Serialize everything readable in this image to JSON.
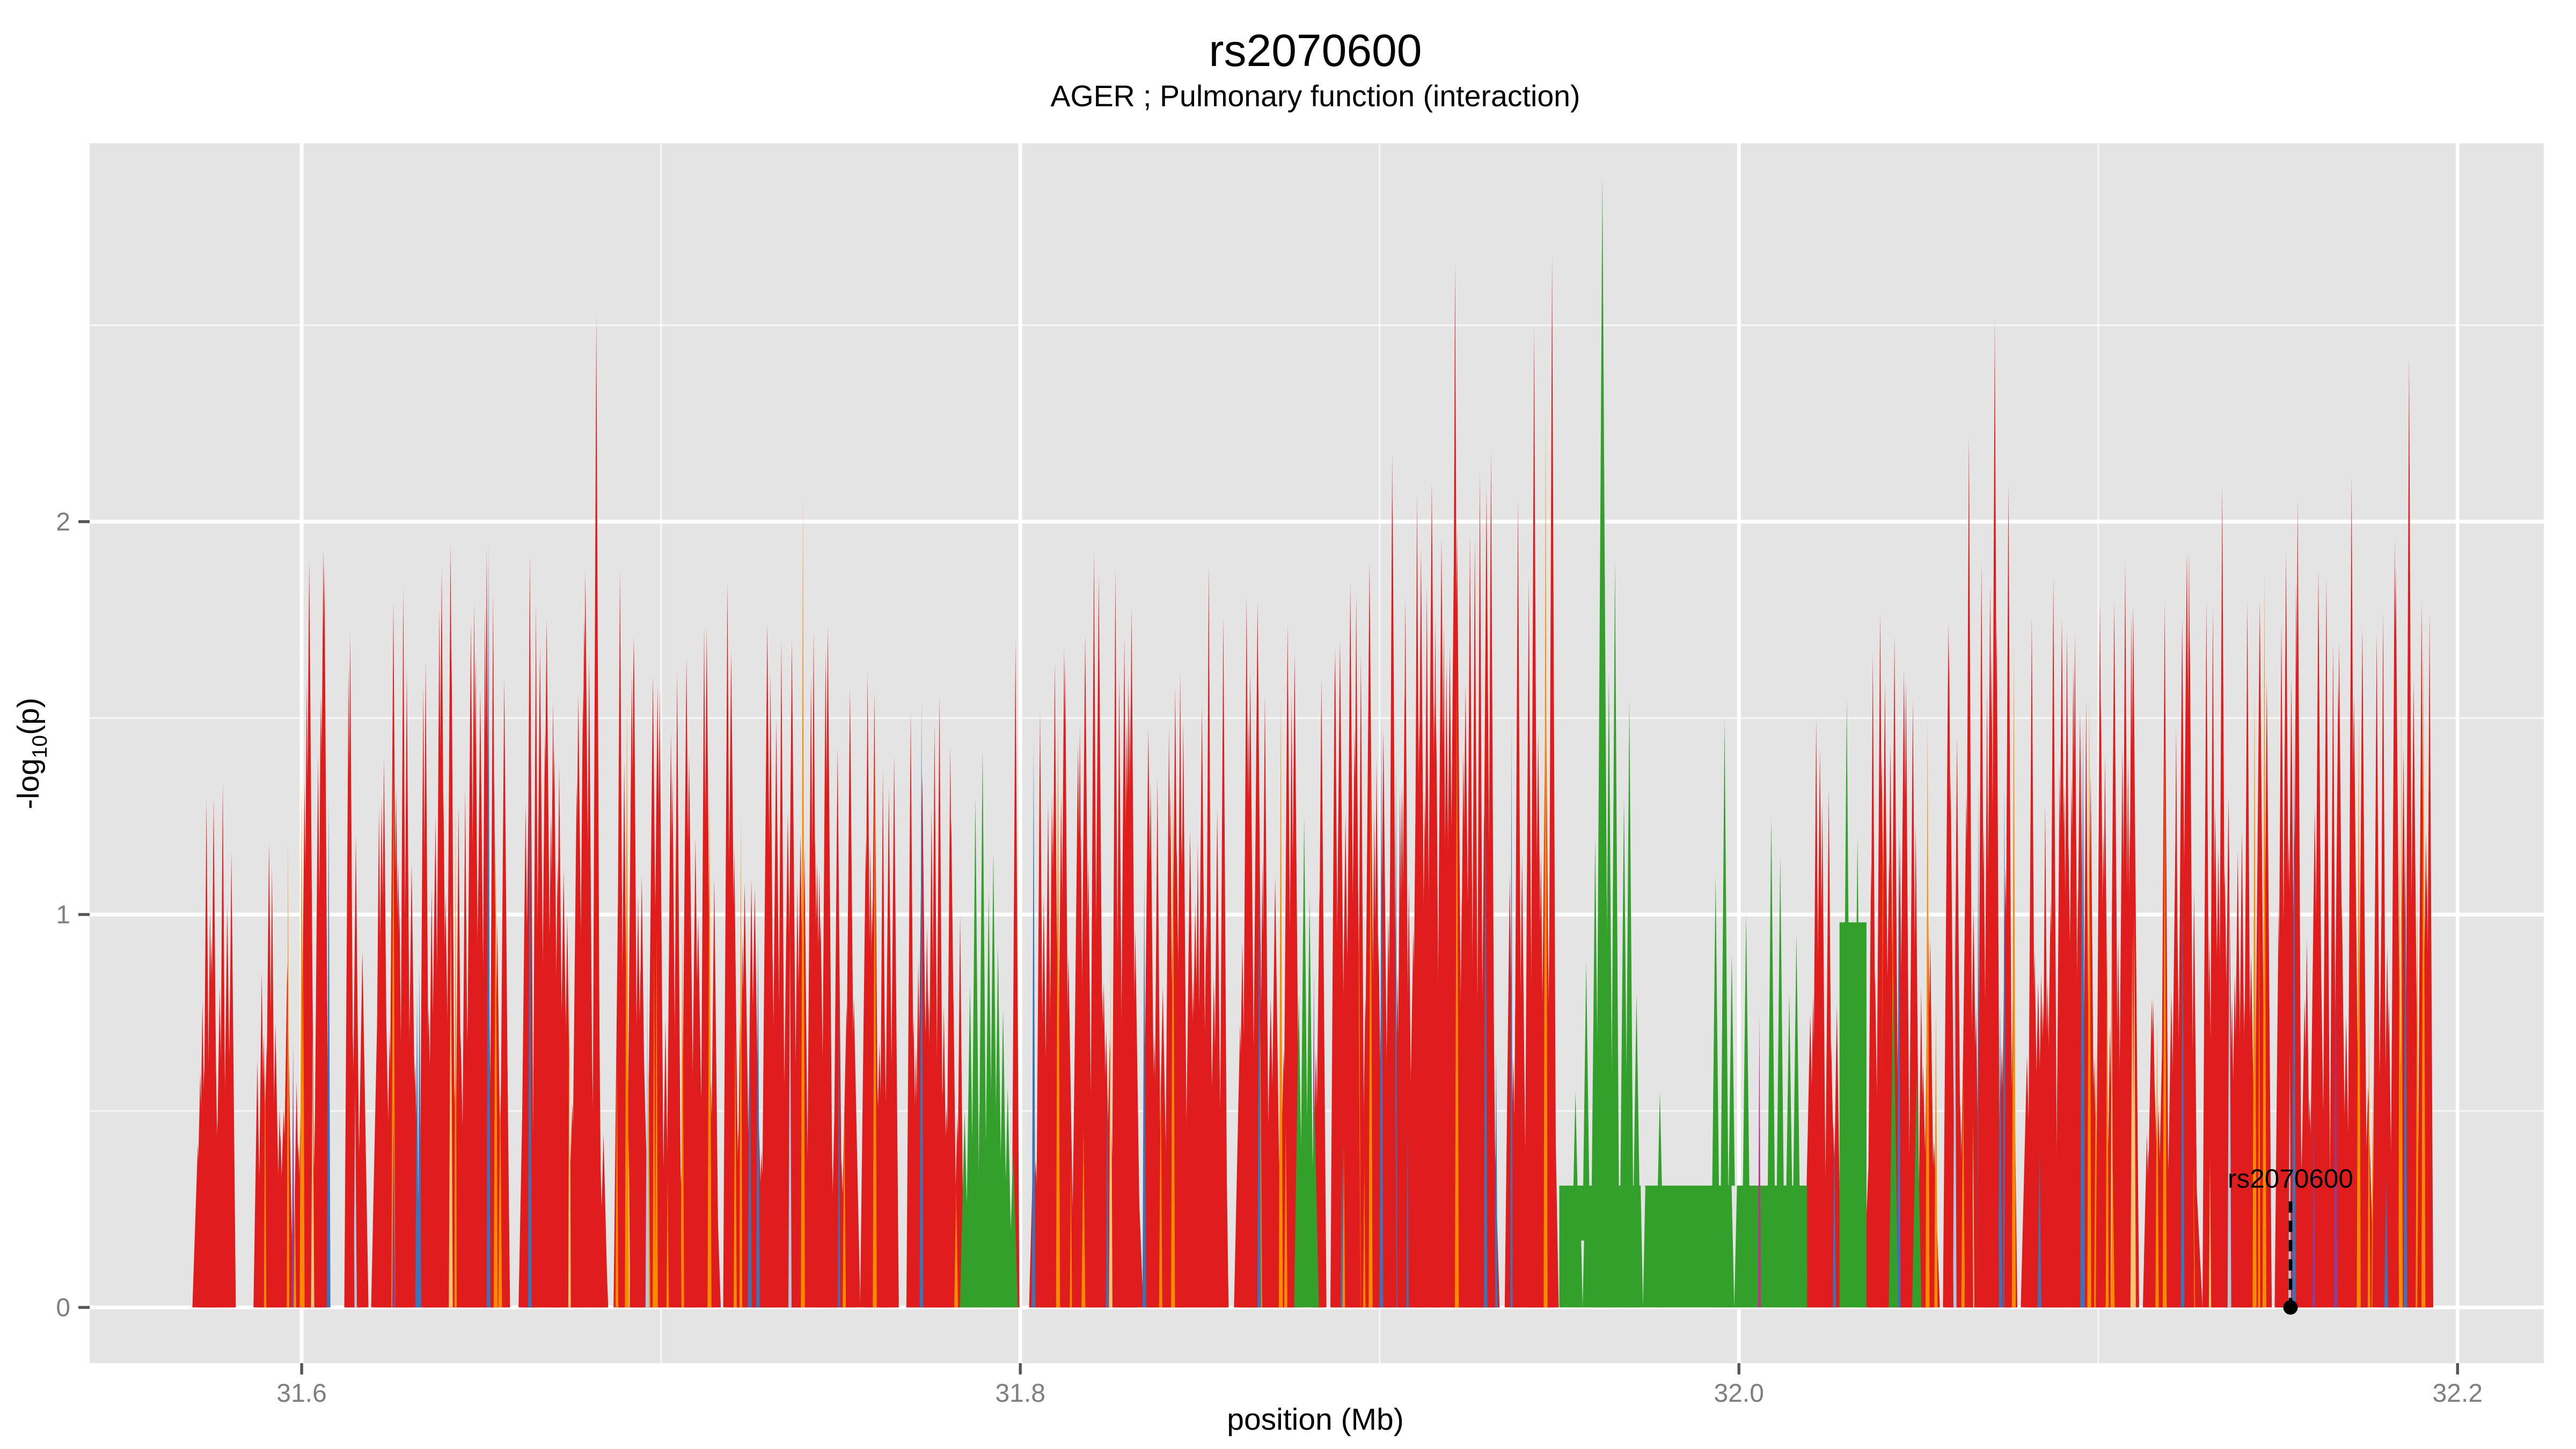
{
  "title": {
    "text": "rs2070600",
    "subtitle": "AGER ; Pulmonary function (interaction)"
  },
  "axes": {
    "x": {
      "label": "position (Mb)",
      "tick_values": [
        31.6,
        31.8,
        32.0,
        32.2
      ],
      "tick_labels": [
        "31.6",
        "31.8",
        "32.0",
        "32.2"
      ],
      "minor_ticks": [
        31.7,
        31.9,
        32.1
      ],
      "lim": [
        31.541,
        32.224
      ]
    },
    "y": {
      "label": "-log10(p)",
      "label_parts": {
        "prefix": "-log",
        "sub": "10",
        "suffix": "(p)"
      },
      "tick_values": [
        0,
        1,
        2
      ],
      "tick_labels": [
        "0",
        "1",
        "2"
      ],
      "minor_ticks": [
        0.5,
        1.5,
        2.5
      ],
      "lim": [
        -0.142,
        2.963
      ]
    }
  },
  "style": {
    "panel_bg": "#E4E4E4",
    "grid_color": "#FFFFFF",
    "tick_color": "#555555",
    "tick_label_color": "#7F7F7F",
    "title_color": "#000000",
    "annotation_color": "#000000"
  },
  "palette": {
    "red": "#DF1D1D",
    "orange": "#F98B00",
    "lightorange": "#FDC571",
    "blue": "#3B74B9",
    "lightblue": "#AFC8DE",
    "purple": "#8E3D97",
    "magenta": "#C03090",
    "green": "#34A02C"
  },
  "chart_data": {
    "type": "area",
    "title": "rs2070600",
    "subtitle": "AGER ; Pulmonary function (interaction)",
    "xlabel": "position (Mb)",
    "ylabel": "-log10(p)",
    "x_unit": "Mb",
    "xlim": [
      31.541,
      32.224
    ],
    "ylim": [
      -0.142,
      2.963
    ],
    "grid": "on",
    "legend": "none",
    "description": "Dense per-variant -log10(p) spikes from ~31.571 to ~32.193 Mb, mostly red with orange/blue/purple accents and green LD clusters",
    "seed": 1337,
    "spike_density_per_mb": 1800,
    "noise_height_min": 0.3,
    "noise_height_exp": 1.35,
    "noise_color_weights": {
      "red": 0.862,
      "orange": 0.075,
      "lightorange": 0.018,
      "blue": 0.032,
      "purple": 0.009,
      "lightblue": 0.004
    },
    "noise_widths_mb": {
      "red_min": 0.002,
      "red_rand": 0.0016,
      "accent_min": 0.0006,
      "accent_rand": 0.0005
    },
    "noise_segments": [
      {
        "x0": 31.571,
        "x1": 31.6,
        "hmax": 1.4
      },
      {
        "x0": 31.6,
        "x1": 31.7,
        "hmax": 1.95
      },
      {
        "x0": 31.7,
        "x1": 31.7835,
        "hmax": 1.75
      },
      {
        "x0": 31.7985,
        "x1": 31.877,
        "hmax": 1.9
      },
      {
        "x0": 31.8815,
        "x1": 31.949,
        "hmax": 2.15
      },
      {
        "x0": 32.019,
        "x1": 32.0275,
        "hmax": 1.55
      },
      {
        "x0": 32.036,
        "x1": 32.1,
        "hmax": 1.85
      },
      {
        "x0": 32.1,
        "x1": 32.1925,
        "hmax": 1.95
      }
    ],
    "gaps": [
      [
        31.5805,
        31.5875
      ],
      [
        31.6065,
        31.6125
      ],
      [
        31.617,
        31.6205
      ],
      [
        31.6575,
        31.6615
      ],
      [
        31.6845,
        31.6875
      ],
      [
        31.7155,
        31.7185
      ],
      [
        31.754,
        31.757
      ],
      [
        31.7655,
        31.769
      ],
      [
        31.7995,
        31.8035
      ],
      [
        31.8325,
        31.8355
      ],
      [
        31.8575,
        31.8605
      ],
      [
        31.884,
        31.8875
      ],
      [
        31.9325,
        31.936
      ],
      [
        32.055,
        32.058
      ],
      [
        32.077,
        32.08
      ],
      [
        32.1105,
        32.1135
      ],
      [
        32.1275,
        32.13
      ],
      [
        32.1475,
        32.15
      ],
      [
        32.1625,
        32.165
      ],
      [
        32.1765,
        32.179
      ]
    ],
    "green_blocks": [
      {
        "x0": 31.784,
        "x1": 31.7985,
        "h": 0.12
      },
      {
        "x0": 31.95,
        "x1": 32.019,
        "h": 0.31
      },
      {
        "x0": 32.028,
        "x1": 32.0355,
        "h": 0.98
      }
    ],
    "green_notches": [
      {
        "x": 31.9565,
        "w": 0.0008,
        "top": 0.17
      },
      {
        "x": 31.9733,
        "w": 0.0013,
        "top": 0.31
      },
      {
        "x": 31.9987,
        "w": 0.0015,
        "top": 0.31
      }
    ],
    "feature_spikes": [
      {
        "x": 31.5755,
        "h": 1.3,
        "c": "red"
      },
      {
        "x": 31.6055,
        "h": 1.55,
        "c": "red"
      },
      {
        "x": 31.6135,
        "h": 1.72,
        "c": "red"
      },
      {
        "x": 31.6345,
        "h": 1.65,
        "c": "red"
      },
      {
        "x": 31.648,
        "h": 1.8,
        "c": "red"
      },
      {
        "x": 31.6515,
        "h": 1.93,
        "c": "red"
      },
      {
        "x": 31.6635,
        "h": 1.92,
        "c": "red"
      },
      {
        "x": 31.682,
        "h": 2.53,
        "c": "red"
      },
      {
        "x": 31.6925,
        "h": 1.7,
        "c": "red"
      },
      {
        "x": 31.7045,
        "h": 1.62,
        "c": "red"
      },
      {
        "x": 31.7185,
        "h": 1.85,
        "c": "red"
      },
      {
        "x": 31.7335,
        "h": 1.7,
        "c": "red"
      },
      {
        "x": 31.7465,
        "h": 1.55,
        "c": "red"
      },
      {
        "x": 31.7575,
        "h": 1.62,
        "c": "red"
      },
      {
        "x": 31.7695,
        "h": 1.52,
        "c": "red"
      },
      {
        "x": 31.7775,
        "h": 1.56,
        "c": "red"
      },
      {
        "x": 31.8055,
        "h": 1.52,
        "c": "red"
      },
      {
        "x": 31.8125,
        "h": 1.65,
        "c": "red"
      },
      {
        "x": 31.8205,
        "h": 1.93,
        "c": "red"
      },
      {
        "x": 31.8305,
        "h": 1.55,
        "c": "red"
      },
      {
        "x": 31.8445,
        "h": 1.62,
        "c": "red"
      },
      {
        "x": 31.8565,
        "h": 1.76,
        "c": "red"
      },
      {
        "x": 31.8635,
        "h": 1.52,
        "c": "red"
      },
      {
        "x": 31.8755,
        "h": 1.56,
        "c": "red"
      },
      {
        "x": 31.8875,
        "h": 1.66,
        "c": "red"
      },
      {
        "x": 31.8935,
        "h": 1.82,
        "c": "red"
      },
      {
        "x": 31.9035,
        "h": 2.18,
        "c": "red"
      },
      {
        "x": 31.9105,
        "h": 1.92,
        "c": "red"
      },
      {
        "x": 31.9155,
        "h": 1.76,
        "c": "red"
      },
      {
        "x": 31.921,
        "h": 2.66,
        "c": "red"
      },
      {
        "x": 31.9265,
        "h": 1.96,
        "c": "red"
      },
      {
        "x": 31.931,
        "h": 2.18,
        "c": "red"
      },
      {
        "x": 31.9385,
        "h": 2.06,
        "c": "red"
      },
      {
        "x": 31.943,
        "h": 2.5,
        "c": "red"
      },
      {
        "x": 31.948,
        "h": 2.68,
        "c": "red"
      },
      {
        "x": 32.0215,
        "h": 1.5,
        "c": "red"
      },
      {
        "x": 32.025,
        "h": 1.32,
        "c": "red"
      },
      {
        "x": 32.0405,
        "h": 1.46,
        "c": "red"
      },
      {
        "x": 32.0465,
        "h": 1.6,
        "c": "red"
      },
      {
        "x": 32.0585,
        "h": 1.7,
        "c": "red"
      },
      {
        "x": 32.064,
        "h": 2.22,
        "c": "red"
      },
      {
        "x": 32.0675,
        "h": 1.9,
        "c": "red"
      },
      {
        "x": 32.0712,
        "h": 2.52,
        "c": "red"
      },
      {
        "x": 32.075,
        "h": 2.1,
        "c": "red"
      },
      {
        "x": 32.0815,
        "h": 1.76,
        "c": "red"
      },
      {
        "x": 32.0875,
        "h": 1.86,
        "c": "red"
      },
      {
        "x": 32.0935,
        "h": 1.72,
        "c": "red"
      },
      {
        "x": 32.1005,
        "h": 1.8,
        "c": "red"
      },
      {
        "x": 32.1075,
        "h": 1.9,
        "c": "red"
      },
      {
        "x": 32.1185,
        "h": 1.8,
        "c": "red"
      },
      {
        "x": 32.1255,
        "h": 1.72,
        "c": "red"
      },
      {
        "x": 32.1345,
        "h": 2.1,
        "c": "red"
      },
      {
        "x": 32.1415,
        "h": 1.8,
        "c": "red"
      },
      {
        "x": 32.1555,
        "h": 2.06,
        "c": "red"
      },
      {
        "x": 32.1635,
        "h": 1.86,
        "c": "red"
      },
      {
        "x": 32.1705,
        "h": 2.12,
        "c": "red"
      },
      {
        "x": 32.1775,
        "h": 1.72,
        "c": "red"
      },
      {
        "x": 32.1825,
        "h": 1.96,
        "c": "red"
      },
      {
        "x": 32.1865,
        "h": 2.42,
        "c": "red"
      },
      {
        "x": 32.19,
        "h": 1.8,
        "c": "red"
      },
      {
        "x": 31.6,
        "h": 1.35,
        "c": "orange"
      },
      {
        "x": 31.6255,
        "h": 1.42,
        "c": "orange"
      },
      {
        "x": 31.654,
        "h": 1.22,
        "c": "orange"
      },
      {
        "x": 31.6905,
        "h": 1.55,
        "c": "orange"
      },
      {
        "x": 31.7135,
        "h": 1.32,
        "c": "orange"
      },
      {
        "x": 31.7395,
        "h": 2.08,
        "c": "orange"
      },
      {
        "x": 31.7595,
        "h": 1.45,
        "c": "orange"
      },
      {
        "x": 31.8105,
        "h": 1.52,
        "c": "orange"
      },
      {
        "x": 31.8425,
        "h": 1.36,
        "c": "orange"
      },
      {
        "x": 31.8725,
        "h": 1.56,
        "c": "orange"
      },
      {
        "x": 31.8975,
        "h": 1.42,
        "c": "orange"
      },
      {
        "x": 31.9215,
        "h": 1.6,
        "c": "orange"
      },
      {
        "x": 31.9462,
        "h": 2.3,
        "c": "orange"
      },
      {
        "x": 32.0525,
        "h": 1.5,
        "c": "orange"
      },
      {
        "x": 32.0765,
        "h": 1.7,
        "c": "orange"
      },
      {
        "x": 32.0975,
        "h": 1.56,
        "c": "orange"
      },
      {
        "x": 32.1185,
        "h": 1.46,
        "c": "orange"
      },
      {
        "x": 32.1435,
        "h": 1.6,
        "c": "orange"
      },
      {
        "x": 32.1725,
        "h": 1.52,
        "c": "orange"
      },
      {
        "x": 32.1905,
        "h": 1.7,
        "c": "orange"
      },
      {
        "x": 31.6415,
        "h": 1.05,
        "c": "lightorange"
      },
      {
        "x": 32.1095,
        "h": 0.95,
        "c": "lightorange"
      },
      {
        "x": 31.6962,
        "h": 0.9,
        "c": "lightblue"
      },
      {
        "x": 32.1365,
        "h": 1.15,
        "c": "lightblue"
      },
      {
        "x": 31.6075,
        "h": 1.3,
        "c": "blue"
      },
      {
        "x": 31.652,
        "h": 1.95,
        "c": "blue"
      },
      {
        "x": 31.6635,
        "h": 1.5,
        "c": "blue"
      },
      {
        "x": 31.727,
        "h": 0.95,
        "c": "blue"
      },
      {
        "x": 31.7725,
        "h": 1.55,
        "c": "blue"
      },
      {
        "x": 31.8037,
        "h": 1.45,
        "c": "blue"
      },
      {
        "x": 31.8345,
        "h": 1.1,
        "c": "blue"
      },
      {
        "x": 31.8665,
        "h": 1.2,
        "c": "blue"
      },
      {
        "x": 31.9005,
        "h": 1.5,
        "c": "blue"
      },
      {
        "x": 31.9295,
        "h": 1.35,
        "c": "blue"
      },
      {
        "x": 32.0445,
        "h": 1.25,
        "c": "blue"
      },
      {
        "x": 32.0955,
        "h": 1.45,
        "c": "blue"
      },
      {
        "x": 32.1235,
        "h": 1.1,
        "c": "blue"
      },
      {
        "x": 32.1545,
        "h": 1.5,
        "c": "blue"
      },
      {
        "x": 32.1855,
        "h": 1.25,
        "c": "blue"
      },
      {
        "x": 31.6256,
        "h": 0.5,
        "c": "purple"
      },
      {
        "x": 31.7886,
        "h": 0.52,
        "c": "purple"
      },
      {
        "x": 31.7916,
        "h": 0.45,
        "c": "purple"
      },
      {
        "x": 32.16,
        "h": 0.55,
        "c": "purple"
      },
      {
        "x": 31.9641,
        "h": 0.62,
        "c": "magenta"
      },
      {
        "x": 32.0057,
        "h": 0.75,
        "c": "magenta"
      },
      {
        "x": 31.7845,
        "h": 0.5,
        "c": "green"
      },
      {
        "x": 31.786,
        "h": 0.82,
        "c": "green"
      },
      {
        "x": 31.7875,
        "h": 1.3,
        "c": "green"
      },
      {
        "x": 31.7895,
        "h": 1.42,
        "c": "green"
      },
      {
        "x": 31.7912,
        "h": 1.06,
        "c": "green"
      },
      {
        "x": 31.7925,
        "h": 1.16,
        "c": "green"
      },
      {
        "x": 31.7938,
        "h": 0.92,
        "c": "green"
      },
      {
        "x": 31.7952,
        "h": 0.76,
        "c": "green"
      },
      {
        "x": 31.7965,
        "h": 0.56,
        "c": "green"
      },
      {
        "x": 31.798,
        "h": 0.4,
        "c": "green"
      },
      {
        "x": 31.8775,
        "h": 0.8,
        "c": "green"
      },
      {
        "x": 31.879,
        "h": 1.25,
        "c": "green"
      },
      {
        "x": 31.8805,
        "h": 1.05,
        "c": "green"
      },
      {
        "x": 31.8818,
        "h": 0.55,
        "c": "green"
      },
      {
        "x": 31.9545,
        "h": 0.55,
        "c": "green"
      },
      {
        "x": 31.9575,
        "h": 0.88,
        "c": "green"
      },
      {
        "x": 31.96,
        "h": 1.2,
        "c": "green"
      },
      {
        "x": 31.962,
        "h": 2.88,
        "c": "green",
        "w": 0.0038
      },
      {
        "x": 31.9638,
        "h": 1.62,
        "c": "green"
      },
      {
        "x": 31.9655,
        "h": 1.9,
        "c": "green"
      },
      {
        "x": 31.968,
        "h": 1.3,
        "c": "green"
      },
      {
        "x": 31.9695,
        "h": 1.55,
        "c": "green"
      },
      {
        "x": 31.9715,
        "h": 0.8,
        "c": "green"
      },
      {
        "x": 31.978,
        "h": 0.55,
        "c": "green"
      },
      {
        "x": 31.9935,
        "h": 1.1,
        "c": "green"
      },
      {
        "x": 31.996,
        "h": 1.5,
        "c": "green"
      },
      {
        "x": 31.998,
        "h": 0.9,
        "c": "green"
      },
      {
        "x": 32.002,
        "h": 1.0,
        "c": "green"
      },
      {
        "x": 32.009,
        "h": 1.25,
        "c": "green"
      },
      {
        "x": 32.0115,
        "h": 1.15,
        "c": "green"
      },
      {
        "x": 32.014,
        "h": 0.8,
        "c": "green"
      },
      {
        "x": 32.016,
        "h": 0.95,
        "c": "green"
      },
      {
        "x": 32.03,
        "h": 1.55,
        "c": "green"
      },
      {
        "x": 32.033,
        "h": 1.2,
        "c": "green"
      },
      {
        "x": 32.043,
        "h": 0.85,
        "c": "green"
      },
      {
        "x": 32.0495,
        "h": 0.6,
        "c": "green"
      }
    ],
    "annotation": {
      "label": "rs2070600",
      "x": 32.1535,
      "y": 0,
      "label_baseline_value": 0.305,
      "dash_top_value": 0.27,
      "dash_bottom_value": 0.005
    }
  }
}
